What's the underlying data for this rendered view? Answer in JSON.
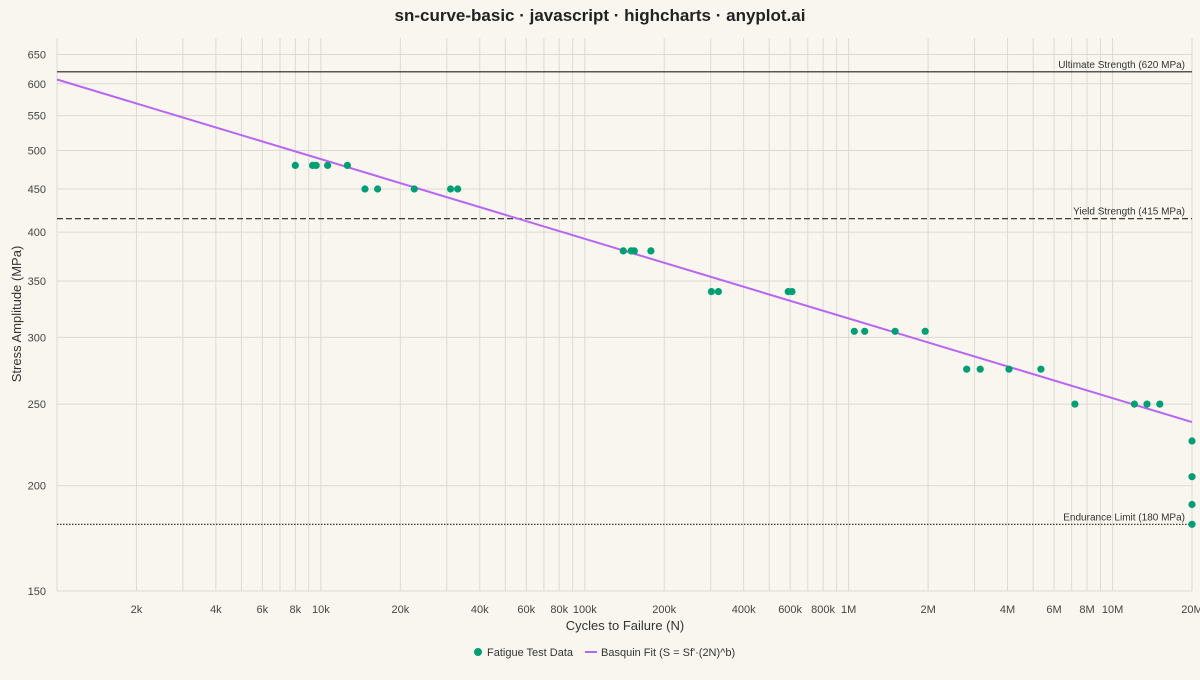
{
  "chart_data": {
    "type": "scatter",
    "title": "sn-curve-basic · javascript · highcharts · anyplot.ai",
    "xlabel": "Cycles to Failure (N)",
    "ylabel": "Stress Amplitude (MPa)",
    "x_scale": "log",
    "y_scale": "log",
    "xlim": [
      1000,
      20000000
    ],
    "ylim": [
      150,
      680
    ],
    "x_ticks": [
      {
        "value": 2000,
        "label": "2k"
      },
      {
        "value": 4000,
        "label": "4k"
      },
      {
        "value": 6000,
        "label": "6k"
      },
      {
        "value": 8000,
        "label": "8k"
      },
      {
        "value": 10000,
        "label": "10k"
      },
      {
        "value": 20000,
        "label": "20k"
      },
      {
        "value": 40000,
        "label": "40k"
      },
      {
        "value": 60000,
        "label": "60k"
      },
      {
        "value": 80000,
        "label": "80k"
      },
      {
        "value": 100000,
        "label": "100k"
      },
      {
        "value": 200000,
        "label": "200k"
      },
      {
        "value": 400000,
        "label": "400k"
      },
      {
        "value": 600000,
        "label": "600k"
      },
      {
        "value": 800000,
        "label": "800k"
      },
      {
        "value": 1000000,
        "label": "1M"
      },
      {
        "value": 2000000,
        "label": "2M"
      },
      {
        "value": 4000000,
        "label": "4M"
      },
      {
        "value": 6000000,
        "label": "6M"
      },
      {
        "value": 8000000,
        "label": "8M"
      },
      {
        "value": 10000000,
        "label": "10M"
      },
      {
        "value": 20000000,
        "label": "20M"
      }
    ],
    "y_ticks": [
      {
        "value": 150,
        "label": "150"
      },
      {
        "value": 200,
        "label": "200"
      },
      {
        "value": 250,
        "label": "250"
      },
      {
        "value": 300,
        "label": "300"
      },
      {
        "value": 350,
        "label": "350"
      },
      {
        "value": 400,
        "label": "400"
      },
      {
        "value": 450,
        "label": "450"
      },
      {
        "value": 500,
        "label": "500"
      },
      {
        "value": 550,
        "label": "550"
      },
      {
        "value": 600,
        "label": "600"
      },
      {
        "value": 650,
        "label": "650"
      }
    ],
    "grid": true,
    "legend_position": "bottom-center",
    "series": [
      {
        "name": "Fatigue Test Data",
        "kind": "scatter",
        "color": "#009e73",
        "points": [
          {
            "x": 8000,
            "y": 480
          },
          {
            "x": 9300,
            "y": 480
          },
          {
            "x": 9600,
            "y": 480
          },
          {
            "x": 10600,
            "y": 480
          },
          {
            "x": 12600,
            "y": 480
          },
          {
            "x": 14700,
            "y": 450
          },
          {
            "x": 16400,
            "y": 450
          },
          {
            "x": 22600,
            "y": 450
          },
          {
            "x": 31000,
            "y": 450
          },
          {
            "x": 33000,
            "y": 450
          },
          {
            "x": 140000,
            "y": 380
          },
          {
            "x": 150000,
            "y": 380
          },
          {
            "x": 154000,
            "y": 380
          },
          {
            "x": 178000,
            "y": 380
          },
          {
            "x": 302000,
            "y": 340
          },
          {
            "x": 321000,
            "y": 340
          },
          {
            "x": 590000,
            "y": 340
          },
          {
            "x": 610000,
            "y": 340
          },
          {
            "x": 1050000,
            "y": 305
          },
          {
            "x": 1150000,
            "y": 305
          },
          {
            "x": 1500000,
            "y": 305
          },
          {
            "x": 1950000,
            "y": 305
          },
          {
            "x": 2800000,
            "y": 275
          },
          {
            "x": 3150000,
            "y": 275
          },
          {
            "x": 4050000,
            "y": 275
          },
          {
            "x": 5350000,
            "y": 275
          },
          {
            "x": 7200000,
            "y": 250
          },
          {
            "x": 12100000,
            "y": 250
          },
          {
            "x": 13500000,
            "y": 250
          },
          {
            "x": 15100000,
            "y": 250
          },
          {
            "x": 20000000,
            "y": 226
          },
          {
            "x": 20000000,
            "y": 205
          },
          {
            "x": 20000000,
            "y": 190
          },
          {
            "x": 20000000,
            "y": 180
          }
        ]
      },
      {
        "name": "Basquin Fit (S = Sf'·(2N)^b)",
        "kind": "line",
        "color": "#b866f0",
        "points": [
          {
            "x": 1000,
            "y": 607
          },
          {
            "x": 20000000,
            "y": 238
          }
        ]
      }
    ],
    "reference_lines": [
      {
        "name": "ultimate",
        "value": 620,
        "label": "Ultimate Strength (620 MPa)",
        "style": "solid",
        "color": "#222222"
      },
      {
        "name": "yield",
        "value": 415,
        "label": "Yield Strength (415 MPa)",
        "style": "dashed",
        "color": "#222222"
      },
      {
        "name": "endurance",
        "value": 180,
        "label": "Endurance Limit (180 MPa)",
        "style": "dotted",
        "color": "#222222"
      }
    ]
  }
}
